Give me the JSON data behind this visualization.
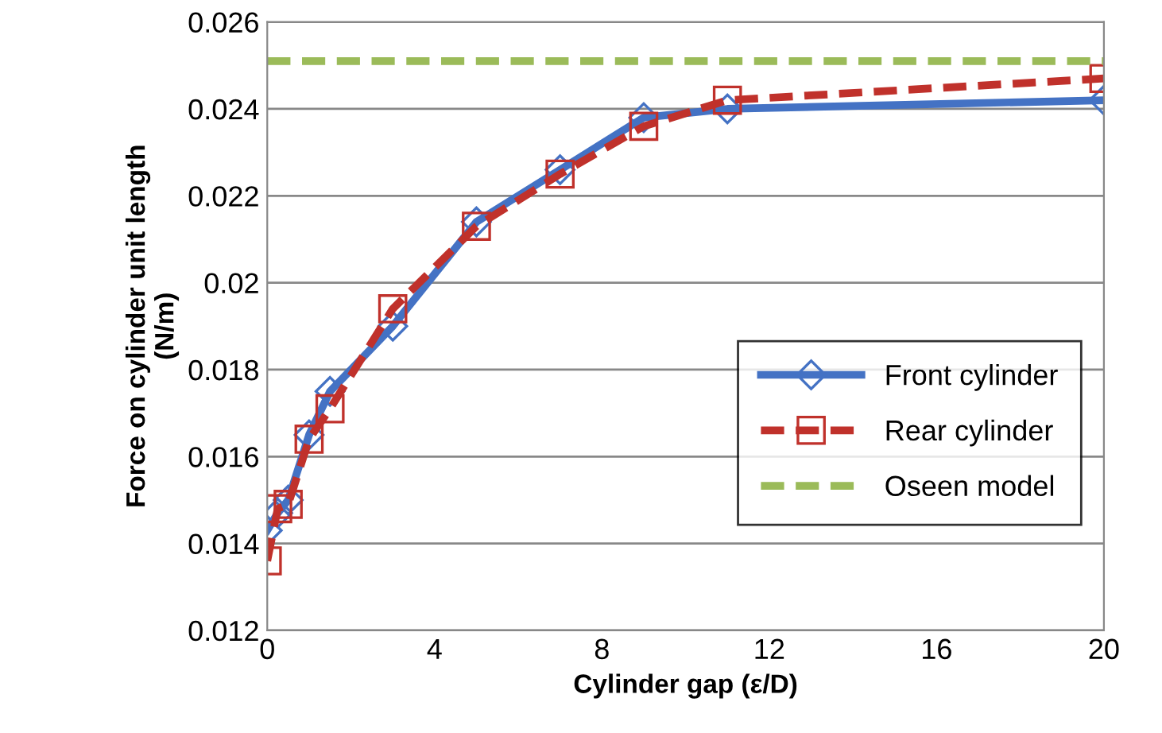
{
  "chart_data": {
    "type": "line",
    "xlabel": "Cylinder gap (ε/D)",
    "ylabel": "Force on cylinder unit length\n(N/m)",
    "xlim": [
      0,
      20
    ],
    "xticks": [
      0,
      4,
      8,
      12,
      16,
      20
    ],
    "ylim": [
      0.012,
      0.026
    ],
    "yticks": [
      0.012,
      0.014,
      0.016,
      0.018,
      0.02,
      0.022,
      0.024,
      0.026
    ],
    "grid": "y",
    "legend": "bottom right",
    "series": [
      {
        "name": "Front cylinder",
        "color": "#4472c4",
        "marker": "diamond",
        "line_style": "solid",
        "x": [
          0,
          0.25,
          0.5,
          1,
          1.5,
          3,
          5,
          7,
          9,
          11,
          20
        ],
        "values": [
          0.0143,
          0.0147,
          0.015,
          0.0165,
          0.0175,
          0.019,
          0.0214,
          0.0226,
          0.0238,
          0.024,
          0.0242
        ]
      },
      {
        "name": "Rear cylinder",
        "color": "#c0312b",
        "marker": "square",
        "line_style": "dashed",
        "x": [
          0,
          0.25,
          0.5,
          1,
          1.5,
          3,
          5,
          7,
          9,
          11,
          20
        ],
        "values": [
          0.0136,
          0.0148,
          0.0149,
          0.0164,
          0.0171,
          0.0194,
          0.0213,
          0.0225,
          0.0236,
          0.0242,
          0.0247
        ]
      },
      {
        "name": "Oseen model",
        "color": "#9bbb59",
        "marker": "none",
        "line_style": "dashed",
        "x": [
          0,
          20
        ],
        "values": [
          0.0251,
          0.0251
        ]
      }
    ]
  }
}
